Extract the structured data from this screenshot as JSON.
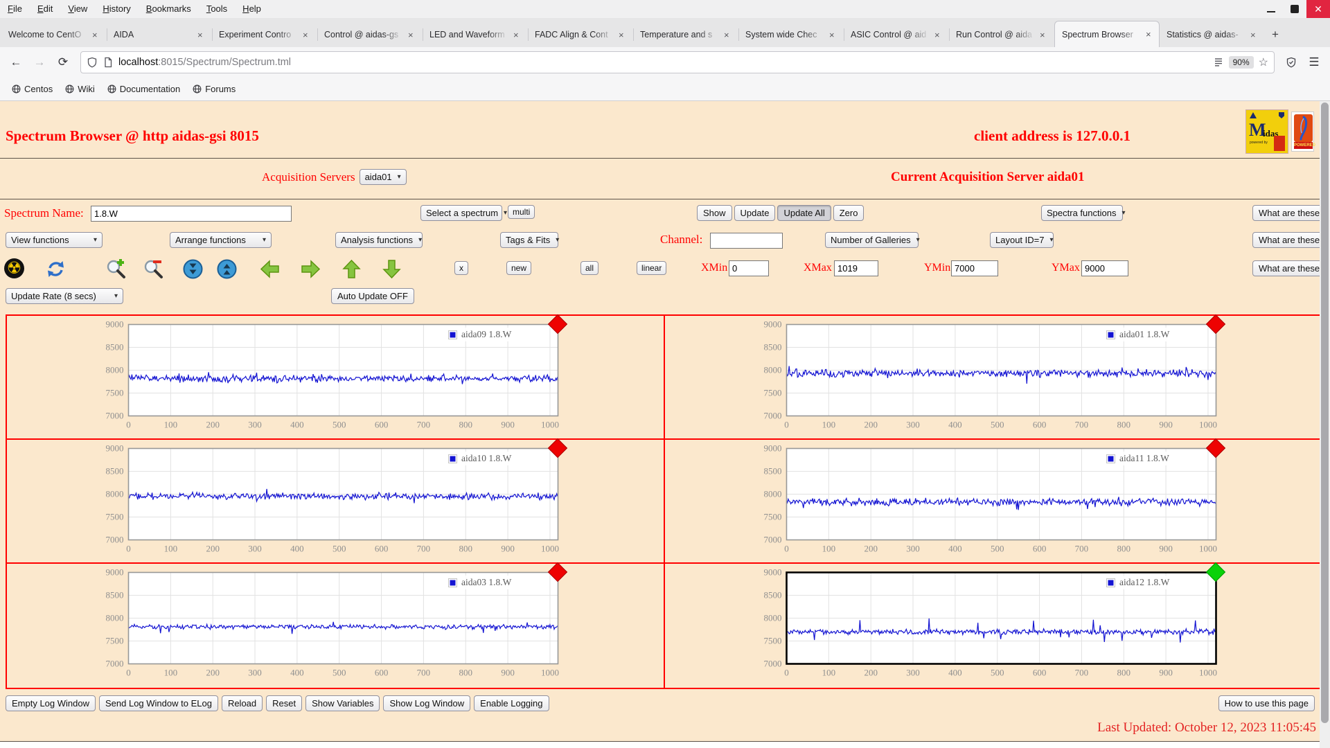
{
  "browser": {
    "menu": [
      "File",
      "Edit",
      "View",
      "History",
      "Bookmarks",
      "Tools",
      "Help"
    ],
    "tabs": [
      {
        "title": "Welcome to CentO",
        "active": false
      },
      {
        "title": "AIDA",
        "active": false
      },
      {
        "title": "Experiment Contro",
        "active": false
      },
      {
        "title": "Control @ aidas-gs",
        "active": false
      },
      {
        "title": "LED and Waveform",
        "active": false
      },
      {
        "title": "FADC Align & Cont",
        "active": false
      },
      {
        "title": "Temperature and s",
        "active": false
      },
      {
        "title": "System wide Chec",
        "active": false
      },
      {
        "title": "ASIC Control @ aid",
        "active": false
      },
      {
        "title": "Run Control @ aida",
        "active": false
      },
      {
        "title": "Spectrum Browser",
        "active": true
      },
      {
        "title": "Statistics @ aidas-",
        "active": false
      }
    ],
    "tab_close": "×",
    "new_tab": "+",
    "nav": {
      "back": "←",
      "forward": "→",
      "reload": "⟳"
    },
    "url": {
      "host": "localhost",
      "rest": ":8015/Spectrum/Spectrum.tml"
    },
    "zoom_badge": "90%",
    "bookmarks": [
      "Centos",
      "Wiki",
      "Documentation",
      "Forums"
    ]
  },
  "page": {
    "title_left": "Spectrum Browser @ http aidas-gsi 8015",
    "title_right": "client address is 127.0.0.1",
    "logos": {
      "midas_m": "M",
      "midas_rest": "idas",
      "powered_by": "powered by",
      "tcl_powered": "POWERED"
    },
    "acquisition": {
      "label": "Acquisition Servers",
      "selected": "aida01",
      "current": "Current Acquisition Server aida01"
    },
    "row1": {
      "spectrum_name_label": "Spectrum Name:",
      "spectrum_name_value": "1.8.W",
      "select_spectrum": "Select a spectrum",
      "multi": "multi",
      "show": "Show",
      "update": "Update",
      "update_all": "Update All",
      "zero": "Zero",
      "spectra_functions": "Spectra functions",
      "what": "What are these?"
    },
    "row2": {
      "view_functions": "View functions",
      "arrange_functions": "Arrange functions",
      "analysis_functions": "Analysis functions",
      "tags_fits": "Tags & Fits",
      "channel_label": "Channel:",
      "channel_value": "",
      "galleries": "Number of Galleries",
      "layout": "Layout ID=7",
      "what": "What are these?"
    },
    "row3": {
      "x": "x",
      "new": "new",
      "all": "all",
      "linear": "linear",
      "xmin_label": "XMin",
      "xmin": "0",
      "xmax_label": "XMax",
      "xmax": "1019",
      "ymin_label": "YMin",
      "ymin": "7000",
      "ymax_label": "YMax",
      "ymax": "9000",
      "what": "What are these?"
    },
    "row4": {
      "update_rate": "Update Rate (8 secs)",
      "auto_update": "Auto Update OFF"
    },
    "footer": {
      "buttons": [
        "Empty Log Window",
        "Send Log Window to ELog",
        "Reload",
        "Reset",
        "Show Variables",
        "Show Log Window",
        "Enable Logging"
      ],
      "help": "How to use this page",
      "last_updated": "Last Updated: October 12, 2023 11:05:45"
    }
  },
  "chart_data": {
    "type": "line",
    "title": "",
    "xlabel": "",
    "ylabel": "",
    "xlim": [
      0,
      1019
    ],
    "ylim": [
      7000,
      9000
    ],
    "x_ticks": [
      0,
      100,
      200,
      300,
      400,
      500,
      600,
      700,
      800,
      900,
      1000
    ],
    "y_ticks": [
      7000,
      7500,
      8000,
      8500,
      9000
    ],
    "grid": true,
    "legend_position": "top-right",
    "line_color": "#1414d2",
    "panels": [
      {
        "name": "aida09",
        "legend": "aida09 1.8.W",
        "baseline": 7820,
        "noise_amp": 85,
        "spike_prob": 0.012,
        "spike_amp": 170,
        "marker_color": "red",
        "selected": false,
        "seed": 409
      },
      {
        "name": "aida01",
        "legend": "aida01 1.8.W",
        "baseline": 7930,
        "noise_amp": 90,
        "spike_prob": 0.02,
        "spike_amp": 180,
        "marker_color": "red",
        "selected": false,
        "seed": 401
      },
      {
        "name": "aida10",
        "legend": "aida10 1.8.W",
        "baseline": 7950,
        "noise_amp": 75,
        "spike_prob": 0.012,
        "spike_amp": 150,
        "marker_color": "red",
        "selected": false,
        "seed": 410
      },
      {
        "name": "aida11",
        "legend": "aida11 1.8.W",
        "baseline": 7830,
        "noise_amp": 80,
        "spike_prob": 0.015,
        "spike_amp": 170,
        "marker_color": "red",
        "selected": false,
        "seed": 411
      },
      {
        "name": "aida03",
        "legend": "aida03 1.8.W",
        "baseline": 7810,
        "noise_amp": 52,
        "spike_prob": 0.01,
        "spike_amp": 150,
        "marker_color": "red",
        "selected": false,
        "seed": 403
      },
      {
        "name": "aida12",
        "legend": "aida12 1.8.W",
        "baseline": 7700,
        "noise_amp": 60,
        "spike_prob": 0.028,
        "spike_amp": 280,
        "marker_color": "green",
        "selected": true,
        "seed": 412
      }
    ]
  }
}
